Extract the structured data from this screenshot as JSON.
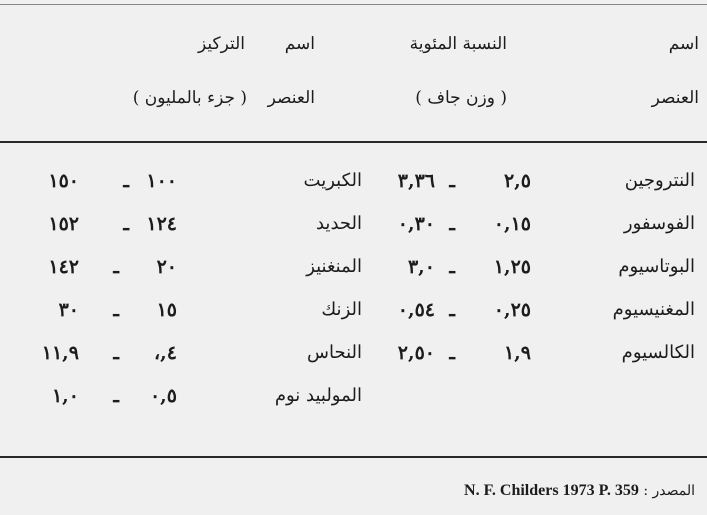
{
  "headers": {
    "element_name_1": [
      "اسم",
      "العنصر"
    ],
    "percentage": [
      "النسبة المئوية",
      "( وزن جاف )"
    ],
    "element_name_2": [
      "اسم",
      "العنصر"
    ],
    "concentration": [
      "التركيز",
      "( جزء بالمليون )"
    ]
  },
  "rows": [
    {
      "el1": "النتروجين",
      "r1_low": "٢,٥",
      "r1_high": "٣,٣٦",
      "el2": "الكبريت",
      "r2_low": "١٠٠",
      "r2_high": "١٥٠"
    },
    {
      "el1": "الفوسفور",
      "r1_low": "٠,١٥",
      "r1_high": "٠,٣٠",
      "el2": "الحديد",
      "r2_low": "١٢٤",
      "r2_high": "١٥٢"
    },
    {
      "el1": "البوتاسيوم",
      "r1_low": "١,٢٥",
      "r1_high": "٣,٠",
      "el2": "المنغنيز",
      "r2_low": "٢٠",
      "r2_high": "١٤٢"
    },
    {
      "el1": "المغنيسيوم",
      "r1_low": "٠,٢٥",
      "r1_high": "٠,٥٤",
      "el2": "الزنك",
      "r2_low": "١٥",
      "r2_high": "٣٠"
    },
    {
      "el1": "الكالسيوم",
      "r1_low": "١,٩",
      "r1_high": "٢,٥٠",
      "el2": "النحاس",
      "r2_low": "٤,،",
      "r2_high": "١١,٩"
    },
    {
      "el1": "",
      "r1_low": "",
      "r1_high": "",
      "el2": "المولبيد نوم",
      "r2_low": "٠,٥",
      "r2_high": "١,٠"
    }
  ],
  "dash": "ـ",
  "source": {
    "label": "المصدر :",
    "text": "N. F. Childers 1973 P. 359"
  }
}
